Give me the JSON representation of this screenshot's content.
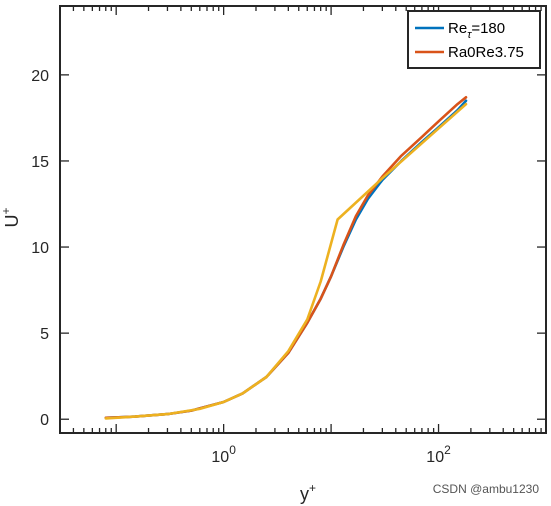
{
  "chart_data": {
    "type": "line",
    "xscale": "log",
    "xlim": [
      0.03,
      1000
    ],
    "ylim": [
      -0.8,
      24
    ],
    "xticks": [
      {
        "value": 1,
        "base": "10",
        "exp": "0"
      },
      {
        "value": 100,
        "base": "10",
        "exp": "2"
      }
    ],
    "yticks": [
      0,
      5,
      10,
      15,
      20
    ],
    "xlabel": {
      "base": "y",
      "sup": "+"
    },
    "ylabel": {
      "base": "U",
      "sup": "+"
    },
    "grid": false,
    "box": true,
    "legend": {
      "placement": "top-right",
      "entries": [
        {
          "base": "Re",
          "sub": "τ",
          "rest": "=180",
          "color": "#0072BD"
        },
        {
          "base": "Ra0Re3.75",
          "sub": "",
          "rest": "",
          "color": "#D95319"
        }
      ]
    },
    "series": [
      {
        "name": "Re_τ=180",
        "color": "#0072BD",
        "x": [
          0.08,
          0.15,
          0.3,
          0.5,
          1.0,
          1.5,
          2.5,
          4,
          6,
          8,
          10,
          13,
          17,
          22,
          30,
          45,
          70,
          100,
          150,
          180
        ],
        "y": [
          0.08,
          0.15,
          0.3,
          0.5,
          1.0,
          1.5,
          2.45,
          3.85,
          5.6,
          7.0,
          8.3,
          10.0,
          11.6,
          12.8,
          13.9,
          15.0,
          16.1,
          16.95,
          17.95,
          18.5
        ]
      },
      {
        "name": "Ra0Re3.75",
        "color": "#D95319",
        "x": [
          0.08,
          0.15,
          0.3,
          0.5,
          1.0,
          1.5,
          2.5,
          4,
          6,
          8,
          10,
          13,
          17,
          22,
          30,
          45,
          70,
          100,
          150,
          180
        ],
        "y": [
          0.08,
          0.15,
          0.3,
          0.5,
          1.0,
          1.5,
          2.45,
          3.85,
          5.6,
          7.0,
          8.3,
          10.1,
          11.8,
          13.0,
          14.1,
          15.3,
          16.4,
          17.3,
          18.3,
          18.7
        ]
      },
      {
        "name": "",
        "color": "#EDB120",
        "x": [
          0.08,
          0.15,
          0.3,
          0.6,
          1.0,
          1.5,
          2.5,
          4,
          6,
          8,
          11.5,
          30,
          180
        ],
        "y": [
          0.05,
          0.15,
          0.3,
          0.6,
          1.0,
          1.5,
          2.45,
          3.95,
          5.8,
          8.0,
          11.6,
          14.0,
          18.3
        ]
      }
    ]
  },
  "watermark": "CSDN @ambu1230"
}
